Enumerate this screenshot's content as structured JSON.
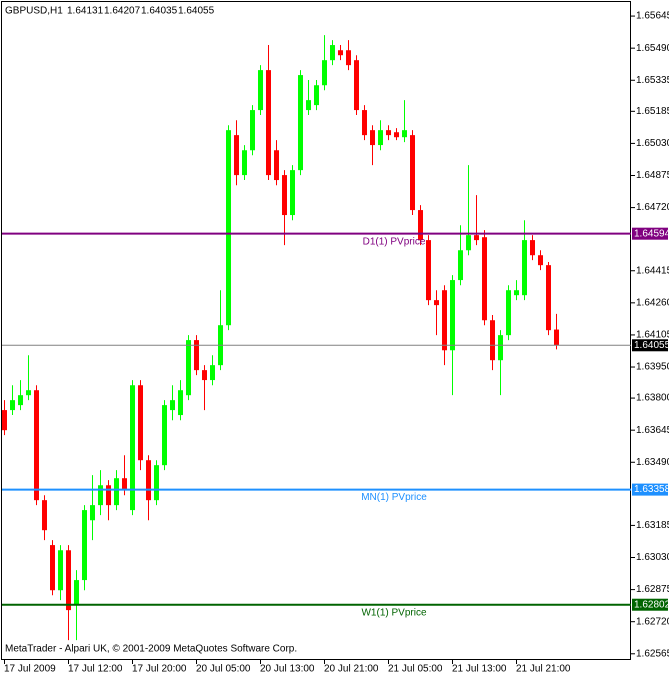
{
  "chart_data": {
    "type": "candlestick",
    "title": "GBPUSD,H1",
    "footer": "MetaTrader - Alpari UK, © 2001-2009 MetaQuotes Software Corp.",
    "categories": [
      "17 Jul 2009",
      null,
      null,
      null,
      null,
      null,
      null,
      null,
      "17 Jul 12:00",
      null,
      null,
      null,
      null,
      null,
      null,
      null,
      "17 Jul 20:00",
      null,
      null,
      null,
      null,
      null,
      null,
      null,
      "20 Jul 05:00",
      null,
      null,
      null,
      null,
      null,
      null,
      null,
      "20 Jul 13:00",
      null,
      null,
      null,
      null,
      null,
      null,
      null,
      "20 Jul 21:00",
      null,
      null,
      null,
      null,
      null,
      null,
      null,
      "21 Jul 05:00",
      null,
      null,
      null,
      null,
      null,
      null,
      null,
      "21 Jul 13:00",
      null,
      null,
      null,
      null,
      null,
      null,
      null,
      "21 Jul 21:00",
      null,
      null,
      null,
      null,
      null
    ],
    "open": [
      1.63742,
      1.63742,
      1.63766,
      1.63814,
      1.63838,
      1.63307,
      1.6309,
      1.62872,
      1.63065,
      1.628,
      1.62921,
      1.6321,
      1.63283,
      1.63379,
      1.63283,
      1.63413,
      1.63259,
      1.63862,
      1.635,
      1.63307,
      1.63476,
      1.63742,
      1.63718,
      1.63814,
      1.6408,
      1.63935,
      1.63887,
      1.63959,
      1.64152,
      1.6507,
      1.64877,
      1.64997,
      1.65191,
      1.65384,
      1.64997,
      1.64877,
      1.64684,
      1.64901,
      1.65191,
      1.65215,
      1.65311,
      1.65432,
      1.6548,
      1.6548,
      1.65432,
      1.65191,
      1.65094,
      1.65022,
      1.65094,
      1.65084,
      1.6506,
      1.6507,
      1.64708,
      1.64563,
      1.64273,
      1.64321,
      1.64031,
      1.6437,
      1.64514,
      1.64587,
      1.64577,
      1.64176,
      1.63983,
      1.64104,
      1.64297,
      1.64297,
      1.64563,
      1.6449,
      1.64442,
      1.64131
    ],
    "high": [
      1.6379,
      1.63862,
      1.63887,
      1.64007,
      1.63862,
      1.63331,
      1.63114,
      1.6309,
      1.6309,
      1.62969,
      1.63283,
      1.63428,
      1.63452,
      1.63404,
      1.63452,
      1.63524,
      1.63887,
      1.63887,
      1.63524,
      1.635,
      1.6379,
      1.63862,
      1.63887,
      1.64104,
      1.64104,
      1.63959,
      1.64007,
      1.64321,
      1.65118,
      1.65142,
      1.65022,
      1.65215,
      1.65408,
      1.65505,
      1.65046,
      1.64901,
      1.64925,
      1.65384,
      1.65336,
      1.65336,
      1.65553,
      1.65529,
      1.65505,
      1.65529,
      1.65456,
      1.65215,
      1.65118,
      1.65142,
      1.65118,
      1.65104,
      1.65239,
      1.65094,
      1.64732,
      1.64587,
      1.64321,
      1.64345,
      1.64394,
      1.64635,
      1.64925,
      1.6478,
      1.64611,
      1.64201,
      1.64128,
      1.64345,
      1.6437,
      1.64659,
      1.64587,
      1.64514,
      1.64457,
      1.64207
    ],
    "low": [
      1.63621,
      1.63718,
      1.63742,
      1.6379,
      1.63283,
      1.63114,
      1.62848,
      1.62824,
      1.62631,
      1.62631,
      1.62872,
      1.63114,
      1.63235,
      1.6321,
      1.63259,
      1.63331,
      1.63235,
      1.63452,
      1.6321,
      1.63283,
      1.63452,
      1.63693,
      1.63693,
      1.6379,
      1.63911,
      1.63742,
      1.63862,
      1.63935,
      1.64128,
      1.64828,
      1.64853,
      1.64973,
      1.65167,
      1.64853,
      1.64828,
      1.64539,
      1.64659,
      1.64877,
      1.65167,
      1.65191,
      1.65287,
      1.65408,
      1.65432,
      1.65384,
      1.65167,
      1.65046,
      1.64925,
      1.64997,
      1.65046,
      1.65046,
      1.65036,
      1.64684,
      1.64539,
      1.64249,
      1.64104,
      1.63959,
      1.63814,
      1.64345,
      1.6449,
      1.64539,
      1.64152,
      1.63935,
      1.63814,
      1.6408,
      1.64273,
      1.64273,
      1.64466,
      1.64418,
      1.64104,
      1.64035
    ],
    "close": [
      1.63645,
      1.6379,
      1.63814,
      1.63838,
      1.63307,
      1.63162,
      1.62872,
      1.63065,
      1.62776,
      1.62921,
      1.63259,
      1.63283,
      1.63379,
      1.63283,
      1.63413,
      1.63355,
      1.63862,
      1.635,
      1.63307,
      1.63476,
      1.63766,
      1.6379,
      1.63838,
      1.6408,
      1.63935,
      1.63887,
      1.63959,
      1.64152,
      1.65094,
      1.64877,
      1.64997,
      1.65191,
      1.65384,
      1.64877,
      1.64853,
      1.64684,
      1.64901,
      1.6536,
      1.65239,
      1.65311,
      1.65432,
      1.65505,
      1.65456,
      1.65408,
      1.65191,
      1.6507,
      1.65022,
      1.65094,
      1.6507,
      1.6506,
      1.65094,
      1.64708,
      1.64563,
      1.64273,
      1.64249,
      1.64031,
      1.6437,
      1.64514,
      1.64587,
      1.64563,
      1.64176,
      1.63983,
      1.64104,
      1.64321,
      1.64321,
      1.64563,
      1.6449,
      1.64442,
      1.64128,
      1.64055
    ],
    "up_color": "#00ff00",
    "down_color": "#ff0000",
    "last_price_color": "#808080",
    "levels": [
      {
        "name": "D1(1) PVprice",
        "value": 1.64594,
        "color": "#800080"
      },
      {
        "name": "MN(1) PVprice",
        "value": 1.63358,
        "color": "#1e90ff"
      },
      {
        "name": "W1(1) PVprice",
        "value": 1.62802,
        "color": "#006400"
      }
    ],
    "ylim": [
      1.62535,
      1.65684
    ],
    "yticks": [
      1.65645,
      {
        "value": 1.6549,
        "label": "1.65490"
      },
      1.65335,
      1.65185,
      {
        "value": 1.6503,
        "label": "1.65030"
      },
      1.64875,
      {
        "value": 1.6472,
        "label": "1.64720"
      },
      1.64415,
      {
        "value": 1.6426,
        "label": "1.64260"
      },
      1.64105,
      {
        "value": 1.6395,
        "label": "1.63950"
      },
      {
        "value": 1.638,
        "label": "1.63800"
      },
      1.63645,
      {
        "value": 1.6349,
        "label": "1.63490"
      },
      1.63185,
      {
        "value": 1.6303,
        "label": "1.63030"
      },
      1.62875,
      {
        "value": 1.6272,
        "label": "1.62720"
      },
      1.62565
    ],
    "grid": false
  }
}
